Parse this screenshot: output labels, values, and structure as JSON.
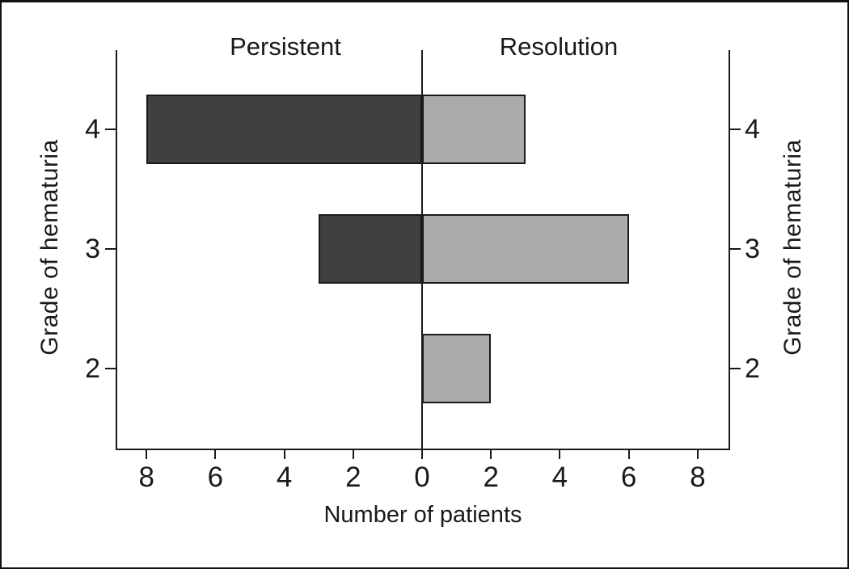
{
  "chart_data": {
    "type": "bar",
    "variant": "diverging_horizontal",
    "left_header": "Persistent",
    "right_header": "Resolution",
    "xlabel": "Number of patients",
    "ylabel_left": "Grade of hematuria",
    "ylabel_right": "Grade of hematuria",
    "categories": [
      "4",
      "3",
      "2"
    ],
    "series": [
      {
        "name": "Persistent",
        "side": "left",
        "color": "#404040",
        "values": [
          8,
          3,
          0
        ]
      },
      {
        "name": "Resolution",
        "side": "right",
        "color": "#ababab",
        "values": [
          3,
          6,
          2
        ]
      }
    ],
    "x_tick_values": [
      -8,
      -6,
      -4,
      -2,
      0,
      2,
      4,
      6,
      8
    ],
    "x_tick_labels": [
      "8",
      "6",
      "4",
      "2",
      "0",
      "2",
      "4",
      "6",
      "8"
    ],
    "xlim": [
      -8.9,
      8.9
    ],
    "grid": false,
    "legend": "none",
    "background": "#ffffff",
    "axis_color": "#1a1a1a",
    "bar_edge_color": "#1a1a1a",
    "frame_color": "#111111"
  }
}
